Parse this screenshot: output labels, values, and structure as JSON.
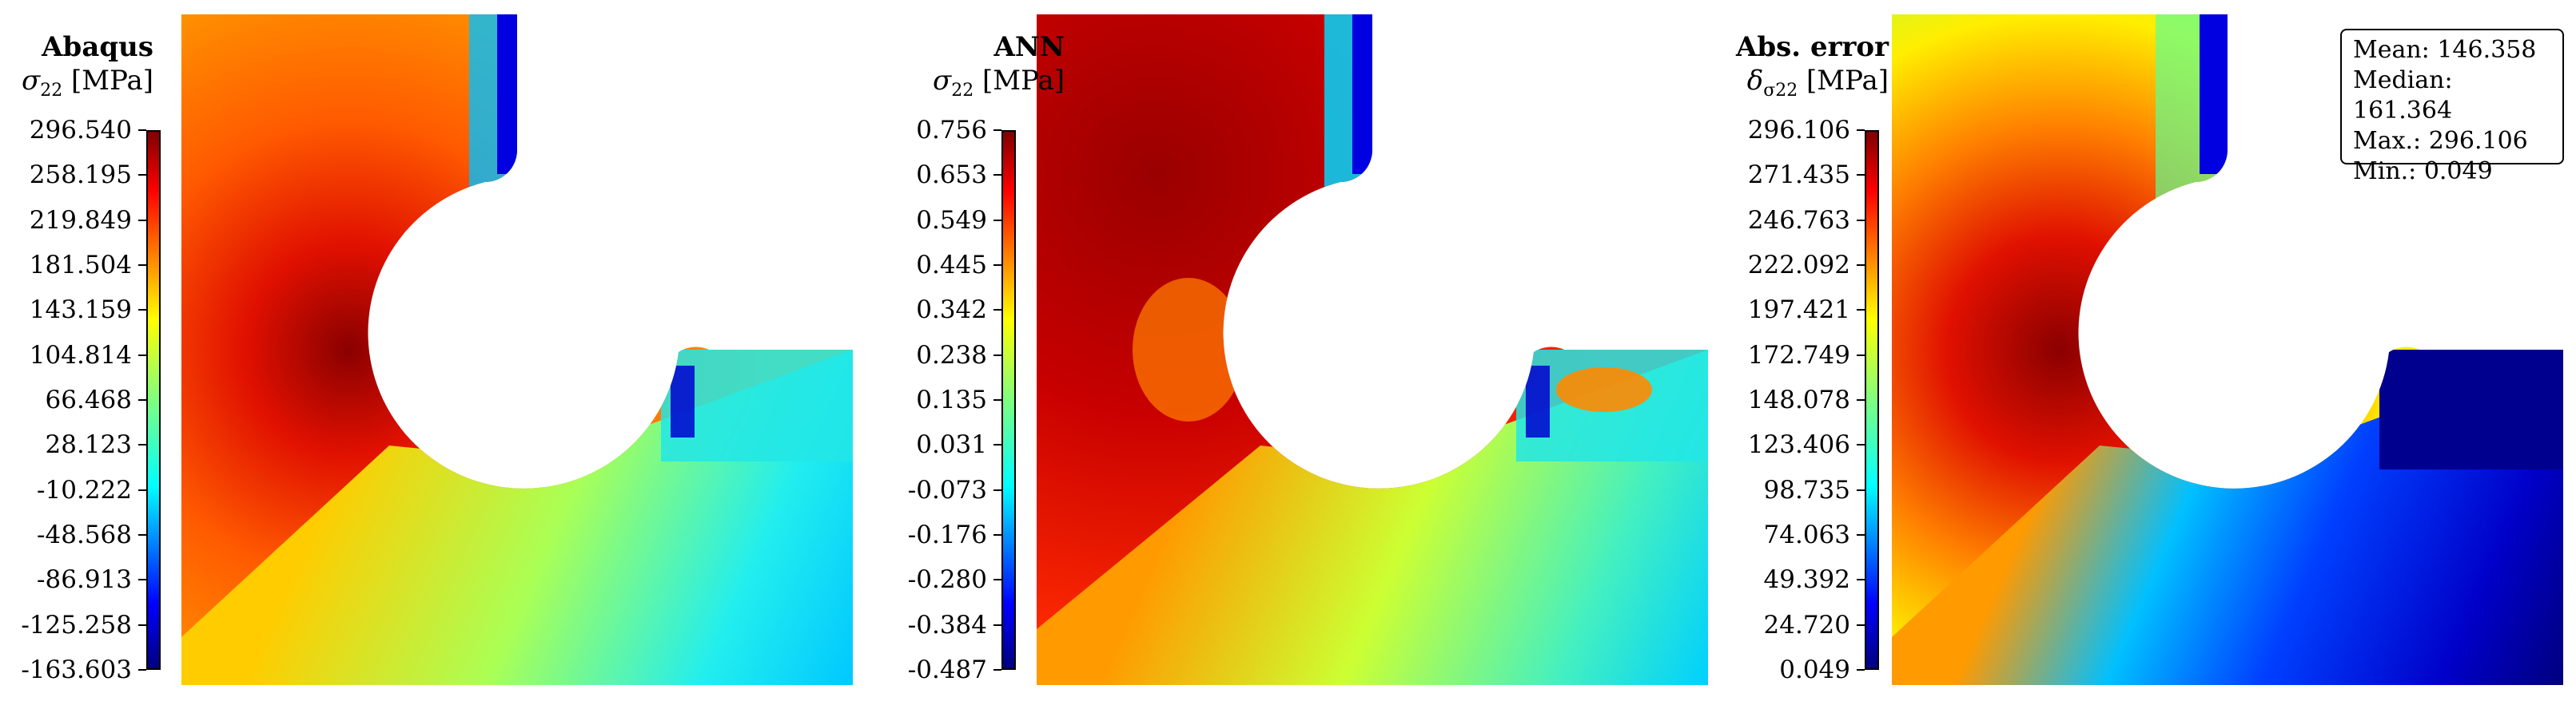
{
  "chart_data": [
    {
      "type": "heatmap",
      "title": "Abaqus",
      "quantity": "σ",
      "quantity_sub": "22",
      "unit": "[MPa]",
      "colorbar": {
        "colormap": "jet",
        "ticks": [
          "296.540",
          "258.195",
          "219.849",
          "181.504",
          "143.159",
          "104.814",
          "66.468",
          "28.123",
          "-10.222",
          "-48.568",
          "-86.913",
          "-125.258",
          "-163.603"
        ],
        "range": [
          -163.603,
          296.54
        ]
      }
    },
    {
      "type": "heatmap",
      "title": "ANN",
      "quantity": "σ",
      "quantity_sub": "22",
      "unit": "[MPa]",
      "colorbar": {
        "colormap": "jet",
        "ticks": [
          "0.756",
          "0.653",
          "0.549",
          "0.445",
          "0.342",
          "0.238",
          "0.135",
          "0.031",
          "-0.073",
          "-0.176",
          "-0.280",
          "-0.384",
          "-0.487"
        ],
        "range": [
          -0.487,
          0.756
        ]
      }
    },
    {
      "type": "heatmap",
      "title": "Abs. error",
      "quantity": "δ",
      "quantity_sub": "σ22",
      "unit": "[MPa]",
      "colorbar": {
        "colormap": "jet",
        "ticks": [
          "296.106",
          "271.435",
          "246.763",
          "222.092",
          "197.421",
          "172.749",
          "148.078",
          "123.406",
          "98.735",
          "74.063",
          "49.392",
          "24.720",
          "0.049"
        ],
        "range": [
          0.049,
          296.106
        ]
      },
      "stats": {
        "mean": "Mean: 146.358",
        "median": "Median: 161.364",
        "max": "Max.: 296.106",
        "min": "Min.: 0.049"
      }
    }
  ]
}
